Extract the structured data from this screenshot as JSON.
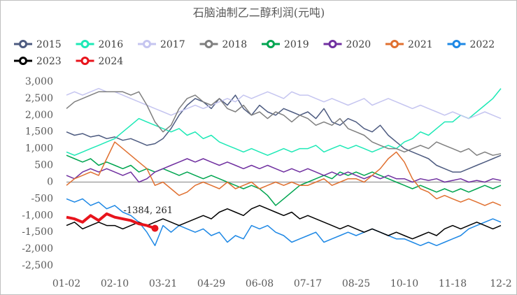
{
  "chart_data": {
    "type": "line",
    "title": "石脑油制乙二醇利润(元吨)",
    "annotation": "-1384, 261",
    "categories": [
      "01-02",
      null,
      null,
      null,
      null,
      null,
      "02-10",
      null,
      null,
      null,
      null,
      null,
      "03-21",
      null,
      null,
      null,
      null,
      null,
      "04-29",
      null,
      null,
      null,
      null,
      null,
      "06-08",
      null,
      null,
      null,
      null,
      null,
      "07-17",
      null,
      null,
      null,
      null,
      null,
      "08-25",
      null,
      null,
      null,
      null,
      null,
      "10-10",
      null,
      null,
      null,
      null,
      null,
      "11-18",
      null,
      null,
      null,
      null,
      null,
      "12-2"
    ],
    "ylim": [
      -2500,
      3000
    ],
    "yticks": [
      {
        "value": -2500,
        "label": "-2,500"
      },
      {
        "value": -2000,
        "label": "-2,000"
      },
      {
        "value": -1500,
        "label": "-1,500"
      },
      {
        "value": -1000,
        "label": "-1,000"
      },
      -500,
      0,
      500,
      {
        "value": 1000,
        "label": "1,000"
      },
      {
        "value": 1500,
        "label": "1,500"
      },
      {
        "value": 2000,
        "label": "2,000"
      },
      {
        "value": 2500,
        "label": "2,500"
      },
      {
        "value": 3000,
        "label": "3,000"
      }
    ],
    "series": [
      {
        "name": "2015",
        "color": "#4d5b80",
        "values": [
          1500,
          1400,
          1450,
          1350,
          1400,
          1300,
          1350,
          1250,
          1300,
          1200,
          1100,
          1150,
          1300,
          1600,
          2000,
          2300,
          2500,
          2400,
          2200,
          2500,
          2300,
          2600,
          2200,
          2000,
          2300,
          2100,
          2000,
          2200,
          2100,
          2000,
          2100,
          1900,
          2200,
          1800,
          1700,
          1900,
          1800,
          1600,
          1500,
          1700,
          1400,
          1200,
          1000,
          900,
          800,
          700,
          500,
          400,
          300,
          300,
          400,
          500,
          600,
          700,
          800
        ]
      },
      {
        "name": "2016",
        "color": "#1de9b6",
        "values": [
          900,
          800,
          900,
          1000,
          1100,
          1200,
          1300,
          1500,
          1700,
          1900,
          1800,
          1700,
          1600,
          1500,
          1600,
          1400,
          1500,
          1300,
          1400,
          1200,
          1100,
          1000,
          900,
          1000,
          900,
          800,
          900,
          1000,
          900,
          1000,
          1000,
          1100,
          900,
          1000,
          1100,
          1000,
          1100,
          1000,
          900,
          1000,
          1100,
          1000,
          1200,
          1300,
          1500,
          1400,
          1600,
          1800,
          1800,
          2000,
          1900,
          2100,
          2300,
          2500,
          2800
        ]
      },
      {
        "name": "2017",
        "color": "#c5c5f0",
        "values": [
          2600,
          2700,
          2600,
          2700,
          2800,
          2700,
          2700,
          2600,
          2500,
          2400,
          2300,
          2200,
          2100,
          2000,
          2100,
          2200,
          2300,
          2200,
          2300,
          2400,
          2500,
          2400,
          2600,
          2500,
          2600,
          2700,
          2600,
          2500,
          2700,
          2600,
          2600,
          2500,
          2400,
          2500,
          2400,
          2300,
          2400,
          2500,
          2300,
          2400,
          2500,
          2400,
          2300,
          2200,
          2300,
          2200,
          2100,
          2000,
          2100,
          2000,
          1900,
          2000,
          2100,
          2000,
          1900
        ]
      },
      {
        "name": "2018",
        "color": "#7f7f7f",
        "values": [
          2200,
          2400,
          2500,
          2600,
          2700,
          2700,
          2700,
          2700,
          2600,
          2700,
          2300,
          1800,
          1500,
          1700,
          2200,
          2500,
          2600,
          2400,
          2300,
          2500,
          2200,
          2100,
          2300,
          2000,
          2100,
          1900,
          2100,
          2000,
          1800,
          2000,
          1900,
          1700,
          1800,
          1700,
          1900,
          1600,
          1500,
          1400,
          1200,
          1100,
          1000,
          1000,
          900,
          1000,
          1100,
          1000,
          1200,
          1100,
          1000,
          900,
          1000,
          800,
          900,
          800,
          850
        ]
      },
      {
        "name": "2019",
        "color": "#00a550",
        "values": [
          800,
          700,
          600,
          700,
          500,
          600,
          500,
          400,
          500,
          300,
          400,
          300,
          400,
          300,
          200,
          300,
          200,
          100,
          200,
          100,
          0,
          -100,
          -200,
          -100,
          -200,
          -400,
          -700,
          -500,
          -300,
          -100,
          0,
          100,
          200,
          100,
          300,
          200,
          300,
          200,
          300,
          200,
          100,
          0,
          -100,
          -200,
          -100,
          -200,
          -300,
          -200,
          -300,
          -200,
          -300,
          -200,
          -100,
          -200,
          -100
        ]
      },
      {
        "name": "2020",
        "color": "#7030a0",
        "values": [
          200,
          100,
          300,
          400,
          300,
          400,
          300,
          200,
          300,
          0,
          100,
          300,
          400,
          500,
          600,
          700,
          600,
          700,
          600,
          500,
          600,
          500,
          400,
          500,
          400,
          500,
          400,
          300,
          400,
          300,
          400,
          300,
          200,
          300,
          200,
          300,
          200,
          100,
          200,
          100,
          200,
          100,
          100,
          0,
          100,
          50,
          100,
          0,
          50,
          100,
          0,
          50,
          0,
          100,
          50
        ]
      },
      {
        "name": "2021",
        "color": "#e07030",
        "values": [
          -100,
          100,
          200,
          300,
          200,
          700,
          1200,
          1000,
          800,
          600,
          400,
          -100,
          0,
          -200,
          -400,
          -300,
          -100,
          0,
          -100,
          -200,
          0,
          -200,
          -100,
          0,
          -200,
          -100,
          0,
          -100,
          0,
          -100,
          -100,
          0,
          100,
          -100,
          0,
          100,
          100,
          0,
          200,
          400,
          700,
          900,
          600,
          100,
          -200,
          -300,
          -500,
          -400,
          -500,
          -600,
          -500,
          -600,
          -700,
          -600,
          -700
        ]
      },
      {
        "name": "2022",
        "color": "#1e88e5",
        "values": [
          -500,
          -600,
          -500,
          -700,
          -600,
          -800,
          -700,
          -900,
          -1000,
          -1200,
          -1500,
          -1900,
          -1300,
          -1500,
          -1300,
          -1400,
          -1500,
          -1400,
          -1600,
          -1500,
          -1800,
          -1600,
          -1700,
          -1300,
          -1400,
          -1300,
          -1500,
          -1600,
          -1800,
          -1700,
          -1600,
          -1500,
          -1800,
          -1700,
          -1600,
          -1500,
          -1600,
          -1500,
          -1400,
          -1500,
          -1600,
          -1700,
          -1700,
          -1800,
          -1900,
          -1800,
          -1900,
          -1800,
          -1700,
          -1600,
          -1400,
          -1300,
          -1200,
          -1100,
          -1200
        ]
      },
      {
        "name": "2023",
        "color": "#000000",
        "values": [
          -1300,
          -1200,
          -1400,
          -1300,
          -1200,
          -1300,
          -1300,
          -1400,
          -1300,
          -1200,
          -1300,
          -1200,
          -1100,
          -1200,
          -1300,
          -1200,
          -1100,
          -1000,
          -1100,
          -900,
          -800,
          -900,
          -1000,
          -800,
          -700,
          -800,
          -900,
          -1000,
          -900,
          -1100,
          -1000,
          -1100,
          -1200,
          -1300,
          -1400,
          -1300,
          -1400,
          -1500,
          -1400,
          -1500,
          -1600,
          -1500,
          -1600,
          -1700,
          -1600,
          -1500,
          -1600,
          -1400,
          -1300,
          -1400,
          -1300,
          -1200,
          -1300,
          -1400,
          -1300
        ]
      },
      {
        "name": "2024",
        "color": "#e8141c",
        "values": [
          -1050,
          -1100,
          -1200,
          -1000,
          -1150,
          -950,
          -1050,
          -1100,
          -1150,
          -1250,
          -1300,
          -1384,
          null,
          null,
          null,
          null,
          null,
          null,
          null,
          null,
          null,
          null,
          null,
          null,
          null,
          null,
          null,
          null,
          null,
          null,
          null,
          null,
          null,
          null,
          null,
          null,
          null,
          null,
          null,
          null,
          null,
          null,
          null,
          null,
          null,
          null,
          null,
          null,
          null,
          null,
          null,
          null,
          null,
          null,
          null
        ]
      }
    ]
  }
}
